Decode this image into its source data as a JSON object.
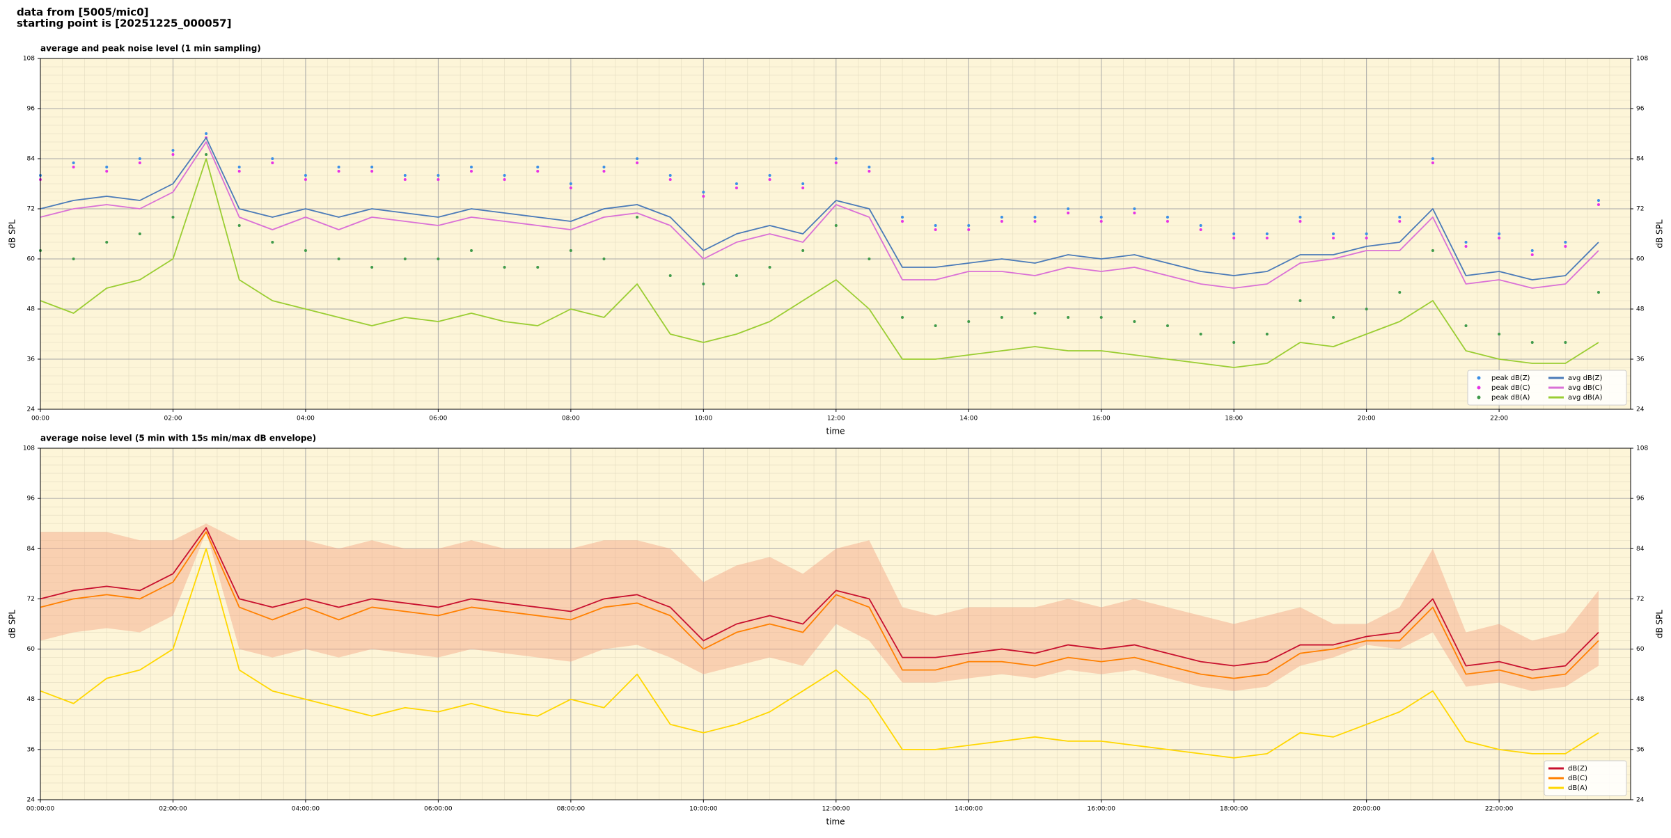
{
  "header": {
    "line1": "data from [5005/mic0]",
    "line2": "starting point is [20251225_000057]"
  },
  "chart_data": [
    {
      "type": "line",
      "title": "average and peak noise level (1 min sampling)",
      "xlabel": "time",
      "ylabel": "dB SPL",
      "facecolor": "#fdf5d8",
      "grid": true,
      "legend": "lower right",
      "legend_columns": 2,
      "x": [
        "00:00",
        "00:30",
        "01:00",
        "01:30",
        "02:00",
        "02:30",
        "03:00",
        "03:30",
        "04:00",
        "04:30",
        "05:00",
        "05:30",
        "06:00",
        "06:30",
        "07:00",
        "07:30",
        "08:00",
        "08:30",
        "09:00",
        "09:30",
        "10:00",
        "10:30",
        "11:00",
        "11:30",
        "12:00",
        "12:30",
        "13:00",
        "13:30",
        "14:00",
        "14:30",
        "15:00",
        "15:30",
        "16:00",
        "16:30",
        "17:00",
        "17:30",
        "18:00",
        "18:30",
        "19:00",
        "19:30",
        "20:00",
        "20:30",
        "21:00",
        "21:30",
        "22:00",
        "22:30",
        "23:00",
        "23:30"
      ],
      "xlim": [
        "00:00",
        "23:59"
      ],
      "xticks": [
        "00:00",
        "02:00",
        "04:00",
        "06:00",
        "08:00",
        "10:00",
        "12:00",
        "14:00",
        "16:00",
        "18:00",
        "20:00",
        "22:00"
      ],
      "ylim": [
        24,
        108
      ],
      "yticks": [
        24,
        36,
        48,
        60,
        72,
        84,
        96,
        108
      ],
      "series": [
        {
          "name": "peak dB(Z)",
          "type": "scatter",
          "color": "#3a8ee6",
          "values": [
            80,
            83,
            82,
            84,
            86,
            90,
            82,
            84,
            80,
            82,
            82,
            80,
            80,
            82,
            80,
            82,
            78,
            82,
            84,
            80,
            76,
            78,
            80,
            78,
            84,
            82,
            70,
            68,
            68,
            70,
            70,
            72,
            70,
            72,
            70,
            68,
            66,
            66,
            70,
            66,
            66,
            70,
            84,
            64,
            66,
            62,
            64,
            74
          ]
        },
        {
          "name": "peak dB(C)",
          "type": "scatter",
          "color": "#e632e6",
          "values": [
            79,
            82,
            81,
            83,
            85,
            89,
            81,
            83,
            79,
            81,
            81,
            79,
            79,
            81,
            79,
            81,
            77,
            81,
            83,
            79,
            75,
            77,
            79,
            77,
            83,
            81,
            69,
            67,
            67,
            69,
            69,
            71,
            69,
            71,
            69,
            67,
            65,
            65,
            69,
            65,
            65,
            69,
            83,
            63,
            65,
            61,
            63,
            73
          ]
        },
        {
          "name": "peak dB(A)",
          "type": "scatter",
          "color": "#3f9a4a",
          "values": [
            62,
            60,
            64,
            66,
            70,
            85,
            68,
            64,
            62,
            60,
            58,
            60,
            60,
            62,
            58,
            58,
            62,
            60,
            70,
            56,
            54,
            56,
            58,
            62,
            68,
            60,
            46,
            44,
            45,
            46,
            47,
            46,
            46,
            45,
            44,
            42,
            40,
            42,
            50,
            46,
            48,
            52,
            62,
            44,
            42,
            40,
            40,
            52
          ]
        },
        {
          "name": "avg dB(Z)",
          "type": "line",
          "color": "#4a7ab8",
          "values": [
            72,
            74,
            75,
            74,
            78,
            89,
            72,
            70,
            72,
            70,
            72,
            71,
            70,
            72,
            71,
            70,
            69,
            72,
            73,
            70,
            62,
            66,
            68,
            66,
            74,
            72,
            58,
            58,
            59,
            60,
            59,
            61,
            60,
            61,
            59,
            57,
            56,
            57,
            61,
            61,
            63,
            64,
            72,
            56,
            57,
            55,
            56,
            64
          ]
        },
        {
          "name": "avg dB(C)",
          "type": "line",
          "color": "#da70d6",
          "values": [
            70,
            72,
            73,
            72,
            76,
            88,
            70,
            67,
            70,
            67,
            70,
            69,
            68,
            70,
            69,
            68,
            67,
            70,
            71,
            68,
            60,
            64,
            66,
            64,
            73,
            70,
            55,
            55,
            57,
            57,
            56,
            58,
            57,
            58,
            56,
            54,
            53,
            54,
            59,
            60,
            62,
            62,
            70,
            54,
            55,
            53,
            54,
            62
          ]
        },
        {
          "name": "avg dB(A)",
          "type": "line",
          "color": "#9acd32",
          "values": [
            50,
            47,
            53,
            55,
            60,
            84,
            55,
            50,
            48,
            46,
            44,
            46,
            45,
            47,
            45,
            44,
            48,
            46,
            54,
            42,
            40,
            42,
            45,
            50,
            55,
            48,
            36,
            36,
            37,
            38,
            39,
            38,
            38,
            37,
            36,
            35,
            34,
            35,
            40,
            39,
            42,
            45,
            50,
            38,
            36,
            35,
            35,
            40
          ]
        }
      ]
    },
    {
      "type": "line",
      "title": "average noise level (5 min with 15s min/max dB envelope)",
      "xlabel": "time",
      "ylabel": "dB SPL",
      "facecolor": "#fdf5d8",
      "grid": true,
      "legend": "lower right",
      "legend_columns": 1,
      "x": [
        "00:00:00",
        "00:30:00",
        "01:00:00",
        "01:30:00",
        "02:00:00",
        "02:30:00",
        "03:00:00",
        "03:30:00",
        "04:00:00",
        "04:30:00",
        "05:00:00",
        "05:30:00",
        "06:00:00",
        "06:30:00",
        "07:00:00",
        "07:30:00",
        "08:00:00",
        "08:30:00",
        "09:00:00",
        "09:30:00",
        "10:00:00",
        "10:30:00",
        "11:00:00",
        "11:30:00",
        "12:00:00",
        "12:30:00",
        "13:00:00",
        "13:30:00",
        "14:00:00",
        "14:30:00",
        "15:00:00",
        "15:30:00",
        "16:00:00",
        "16:30:00",
        "17:00:00",
        "17:30:00",
        "18:00:00",
        "18:30:00",
        "19:00:00",
        "19:30:00",
        "20:00:00",
        "20:30:00",
        "21:00:00",
        "21:30:00",
        "22:00:00",
        "22:30:00",
        "23:00:00",
        "23:30:00"
      ],
      "xlim": [
        "00:00:00",
        "23:59:00"
      ],
      "xticks": [
        "00:00:00",
        "02:00:00",
        "04:00:00",
        "06:00:00",
        "08:00:00",
        "10:00:00",
        "12:00:00",
        "14:00:00",
        "16:00:00",
        "18:00:00",
        "20:00:00",
        "22:00:00"
      ],
      "ylim": [
        24,
        108
      ],
      "yticks": [
        24,
        36,
        48,
        60,
        72,
        84,
        96,
        108
      ],
      "envelope": {
        "color": "#f4a582",
        "opacity": 0.45,
        "min": [
          62,
          64,
          65,
          64,
          68,
          88,
          60,
          58,
          60,
          58,
          60,
          59,
          58,
          60,
          59,
          58,
          57,
          60,
          61,
          58,
          54,
          56,
          58,
          56,
          66,
          62,
          52,
          52,
          53,
          54,
          53,
          55,
          54,
          55,
          53,
          51,
          50,
          51,
          56,
          58,
          61,
          60,
          64,
          51,
          52,
          50,
          51,
          56
        ],
        "max": [
          88,
          88,
          88,
          86,
          86,
          90,
          86,
          86,
          86,
          84,
          86,
          84,
          84,
          86,
          84,
          84,
          84,
          86,
          86,
          84,
          76,
          80,
          82,
          78,
          84,
          86,
          70,
          68,
          70,
          70,
          70,
          72,
          70,
          72,
          70,
          68,
          66,
          68,
          70,
          66,
          66,
          70,
          84,
          64,
          66,
          62,
          64,
          74
        ]
      },
      "series": [
        {
          "name": "dB(Z)",
          "type": "line",
          "color": "#c8102e",
          "values": [
            72,
            74,
            75,
            74,
            78,
            89,
            72,
            70,
            72,
            70,
            72,
            71,
            70,
            72,
            71,
            70,
            69,
            72,
            73,
            70,
            62,
            66,
            68,
            66,
            74,
            72,
            58,
            58,
            59,
            60,
            59,
            61,
            60,
            61,
            59,
            57,
            56,
            57,
            61,
            61,
            63,
            64,
            72,
            56,
            57,
            55,
            56,
            64
          ]
        },
        {
          "name": "dB(C)",
          "type": "line",
          "color": "#ff8000",
          "values": [
            70,
            72,
            73,
            72,
            76,
            88,
            70,
            67,
            70,
            67,
            70,
            69,
            68,
            70,
            69,
            68,
            67,
            70,
            71,
            68,
            60,
            64,
            66,
            64,
            73,
            70,
            55,
            55,
            57,
            57,
            56,
            58,
            57,
            58,
            56,
            54,
            53,
            54,
            59,
            60,
            62,
            62,
            70,
            54,
            55,
            53,
            54,
            62
          ]
        },
        {
          "name": "dB(A)",
          "type": "line",
          "color": "#ffd700",
          "values": [
            50,
            47,
            53,
            55,
            60,
            84,
            55,
            50,
            48,
            46,
            44,
            46,
            45,
            47,
            45,
            44,
            48,
            46,
            54,
            42,
            40,
            42,
            45,
            50,
            55,
            48,
            36,
            36,
            37,
            38,
            39,
            38,
            38,
            37,
            36,
            35,
            34,
            35,
            40,
            39,
            42,
            45,
            50,
            38,
            36,
            35,
            35,
            40
          ]
        }
      ]
    }
  ]
}
